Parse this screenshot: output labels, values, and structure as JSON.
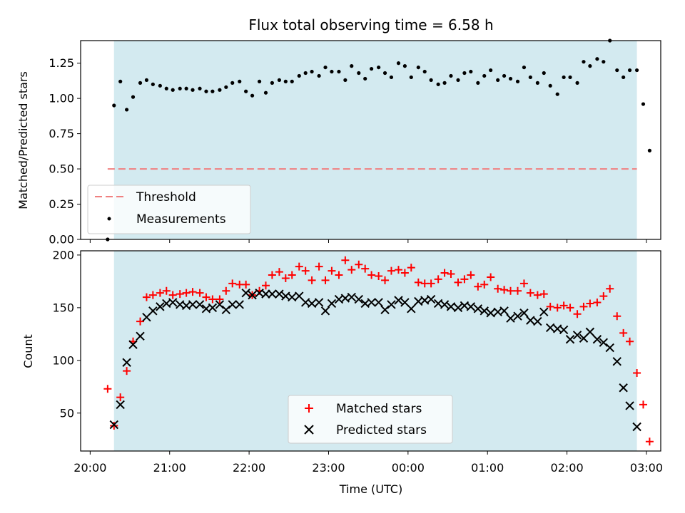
{
  "chart_data": [
    {
      "type": "scatter",
      "title": "Flux total observing time = 6.58 h",
      "xlabel": "",
      "ylabel": "Matched/Predicted stars",
      "x_unit": "hours since 20:00 UTC (axis shows times 20:00–03:00)",
      "xlim": [
        -0.12,
        7.18
      ],
      "ylim": [
        0,
        1.41
      ],
      "yticks": [
        0.0,
        0.25,
        0.5,
        0.75,
        1.0,
        1.25
      ],
      "ytick_labels": [
        "0.00",
        "0.25",
        "0.50",
        "0.75",
        "1.00",
        "1.25"
      ],
      "observing_window": [
        0.3,
        6.88
      ],
      "colors": {
        "window": "#d3eaf0",
        "threshold": "#f08080",
        "measurements": "#000000"
      },
      "legend": {
        "position": "lower-left",
        "entries": [
          "Threshold",
          "Measurements"
        ]
      },
      "threshold": {
        "name": "Threshold",
        "y": 0.5,
        "x": [
          0.22,
          6.88
        ]
      },
      "series": [
        {
          "name": "Measurements",
          "points": [
            [
              0.22,
              0.0
            ],
            [
              0.3,
              0.95
            ],
            [
              0.38,
              1.12
            ],
            [
              0.46,
              0.92
            ],
            [
              0.54,
              1.01
            ],
            [
              0.63,
              1.11
            ],
            [
              0.71,
              1.13
            ],
            [
              0.79,
              1.1
            ],
            [
              0.88,
              1.09
            ],
            [
              0.96,
              1.07
            ],
            [
              1.04,
              1.06
            ],
            [
              1.13,
              1.07
            ],
            [
              1.21,
              1.07
            ],
            [
              1.29,
              1.06
            ],
            [
              1.38,
              1.07
            ],
            [
              1.46,
              1.05
            ],
            [
              1.54,
              1.05
            ],
            [
              1.63,
              1.06
            ],
            [
              1.71,
              1.08
            ],
            [
              1.79,
              1.11
            ],
            [
              1.88,
              1.12
            ],
            [
              1.96,
              1.05
            ],
            [
              2.04,
              1.02
            ],
            [
              2.13,
              1.12
            ],
            [
              2.21,
              1.04
            ],
            [
              2.29,
              1.11
            ],
            [
              2.38,
              1.13
            ],
            [
              2.46,
              1.12
            ],
            [
              2.54,
              1.12
            ],
            [
              2.63,
              1.16
            ],
            [
              2.71,
              1.18
            ],
            [
              2.79,
              1.19
            ],
            [
              2.88,
              1.16
            ],
            [
              2.96,
              1.22
            ],
            [
              3.04,
              1.19
            ],
            [
              3.13,
              1.19
            ],
            [
              3.21,
              1.13
            ],
            [
              3.29,
              1.23
            ],
            [
              3.38,
              1.18
            ],
            [
              3.46,
              1.14
            ],
            [
              3.54,
              1.21
            ],
            [
              3.63,
              1.22
            ],
            [
              3.71,
              1.18
            ],
            [
              3.79,
              1.15
            ],
            [
              3.88,
              1.25
            ],
            [
              3.96,
              1.23
            ],
            [
              4.04,
              1.15
            ],
            [
              4.13,
              1.22
            ],
            [
              4.21,
              1.19
            ],
            [
              4.29,
              1.13
            ],
            [
              4.38,
              1.1
            ],
            [
              4.46,
              1.11
            ],
            [
              4.54,
              1.16
            ],
            [
              4.63,
              1.13
            ],
            [
              4.71,
              1.18
            ],
            [
              4.79,
              1.19
            ],
            [
              4.88,
              1.11
            ],
            [
              4.96,
              1.16
            ],
            [
              5.04,
              1.2
            ],
            [
              5.13,
              1.13
            ],
            [
              5.21,
              1.16
            ],
            [
              5.29,
              1.14
            ],
            [
              5.38,
              1.12
            ],
            [
              5.46,
              1.22
            ],
            [
              5.54,
              1.15
            ],
            [
              5.63,
              1.11
            ],
            [
              5.71,
              1.18
            ],
            [
              5.79,
              1.09
            ],
            [
              5.88,
              1.03
            ],
            [
              5.96,
              1.15
            ],
            [
              6.04,
              1.15
            ],
            [
              6.13,
              1.11
            ],
            [
              6.21,
              1.26
            ],
            [
              6.29,
              1.23
            ],
            [
              6.38,
              1.28
            ],
            [
              6.46,
              1.26
            ],
            [
              6.54,
              1.41
            ],
            [
              6.63,
              1.2
            ],
            [
              6.71,
              1.15
            ],
            [
              6.79,
              1.2
            ],
            [
              6.88,
              1.2
            ],
            [
              6.96,
              0.96
            ],
            [
              7.04,
              0.63
            ]
          ]
        }
      ]
    },
    {
      "type": "scatter",
      "title": "",
      "xlabel": "Time (UTC)",
      "ylabel": "Count",
      "x_unit": "hours since 20:00 UTC",
      "xlim": [
        -0.12,
        7.18
      ],
      "ylim": [
        14,
        204
      ],
      "xticks": [
        0,
        1,
        2,
        3,
        4,
        5,
        6,
        7
      ],
      "xtick_labels": [
        "20:00",
        "21:00",
        "22:00",
        "23:00",
        "00:00",
        "01:00",
        "02:00",
        "03:00"
      ],
      "yticks": [
        50,
        100,
        150,
        200
      ],
      "ytick_labels": [
        "50",
        "100",
        "150",
        "200"
      ],
      "observing_window": [
        0.3,
        6.88
      ],
      "colors": {
        "window": "#d3eaf0",
        "matched": "#ff0000",
        "predicted": "#000000"
      },
      "legend": {
        "position": "lower-center",
        "entries": [
          "Matched stars",
          "Predicted stars"
        ]
      },
      "series": [
        {
          "name": "Matched stars",
          "marker": "plus",
          "points": [
            [
              0.22,
              73
            ],
            [
              0.3,
              38
            ],
            [
              0.38,
              65
            ],
            [
              0.46,
              90
            ],
            [
              0.54,
              118
            ],
            [
              0.63,
              137
            ],
            [
              0.71,
              160
            ],
            [
              0.79,
              162
            ],
            [
              0.88,
              164
            ],
            [
              0.96,
              166
            ],
            [
              1.04,
              162
            ],
            [
              1.13,
              163
            ],
            [
              1.21,
              164
            ],
            [
              1.29,
              165
            ],
            [
              1.38,
              164
            ],
            [
              1.46,
              160
            ],
            [
              1.54,
              158
            ],
            [
              1.63,
              158
            ],
            [
              1.71,
              166
            ],
            [
              1.79,
              173
            ],
            [
              1.88,
              172
            ],
            [
              1.96,
              172
            ],
            [
              2.04,
              162
            ],
            [
              2.13,
              166
            ],
            [
              2.21,
              171
            ],
            [
              2.29,
              181
            ],
            [
              2.38,
              184
            ],
            [
              2.46,
              178
            ],
            [
              2.54,
              181
            ],
            [
              2.63,
              189
            ],
            [
              2.71,
              185
            ],
            [
              2.79,
              176
            ],
            [
              2.88,
              189
            ],
            [
              2.96,
              176
            ],
            [
              3.04,
              185
            ],
            [
              3.13,
              181
            ],
            [
              3.21,
              195
            ],
            [
              3.29,
              186
            ],
            [
              3.38,
              191
            ],
            [
              3.46,
              187
            ],
            [
              3.54,
              181
            ],
            [
              3.63,
              180
            ],
            [
              3.71,
              176
            ],
            [
              3.79,
              185
            ],
            [
              3.88,
              186
            ],
            [
              3.96,
              183
            ],
            [
              4.04,
              188
            ],
            [
              4.13,
              174
            ],
            [
              4.21,
              173
            ],
            [
              4.29,
              173
            ],
            [
              4.38,
              177
            ],
            [
              4.46,
              183
            ],
            [
              4.54,
              182
            ],
            [
              4.63,
              174
            ],
            [
              4.71,
              177
            ],
            [
              4.79,
              181
            ],
            [
              4.88,
              170
            ],
            [
              4.96,
              172
            ],
            [
              5.04,
              179
            ],
            [
              5.13,
              168
            ],
            [
              5.21,
              167
            ],
            [
              5.29,
              166
            ],
            [
              5.38,
              166
            ],
            [
              5.46,
              173
            ],
            [
              5.54,
              164
            ],
            [
              5.63,
              162
            ],
            [
              5.71,
              163
            ],
            [
              5.79,
              151
            ],
            [
              5.88,
              150
            ],
            [
              5.96,
              152
            ],
            [
              6.04,
              150
            ],
            [
              6.13,
              144
            ],
            [
              6.21,
              151
            ],
            [
              6.29,
              154
            ],
            [
              6.38,
              155
            ],
            [
              6.46,
              161
            ],
            [
              6.54,
              168
            ],
            [
              6.63,
              142
            ],
            [
              6.71,
              126
            ],
            [
              6.79,
              118
            ],
            [
              6.88,
              88
            ],
            [
              6.96,
              58
            ],
            [
              7.04,
              23
            ]
          ]
        },
        {
          "name": "Predicted stars",
          "marker": "x",
          "points": [
            [
              0.3,
              39
            ],
            [
              0.38,
              58
            ],
            [
              0.46,
              98
            ],
            [
              0.54,
              115
            ],
            [
              0.63,
              123
            ],
            [
              0.71,
              141
            ],
            [
              0.79,
              147
            ],
            [
              0.88,
              151
            ],
            [
              0.96,
              154
            ],
            [
              1.04,
              155
            ],
            [
              1.13,
              153
            ],
            [
              1.21,
              152
            ],
            [
              1.29,
              153
            ],
            [
              1.38,
              153
            ],
            [
              1.46,
              149
            ],
            [
              1.54,
              150
            ],
            [
              1.63,
              153
            ],
            [
              1.71,
              148
            ],
            [
              1.79,
              153
            ],
            [
              1.88,
              153
            ],
            [
              1.96,
              164
            ],
            [
              2.04,
              162
            ],
            [
              2.13,
              164
            ],
            [
              2.21,
              163
            ],
            [
              2.29,
              163
            ],
            [
              2.38,
              163
            ],
            [
              2.46,
              161
            ],
            [
              2.54,
              160
            ],
            [
              2.63,
              161
            ],
            [
              2.71,
              155
            ],
            [
              2.79,
              154
            ],
            [
              2.88,
              155
            ],
            [
              2.96,
              147
            ],
            [
              3.04,
              154
            ],
            [
              3.13,
              158
            ],
            [
              3.21,
              159
            ],
            [
              3.29,
              160
            ],
            [
              3.38,
              158
            ],
            [
              3.46,
              154
            ],
            [
              3.54,
              155
            ],
            [
              3.63,
              155
            ],
            [
              3.71,
              148
            ],
            [
              3.79,
              153
            ],
            [
              3.88,
              157
            ],
            [
              3.96,
              155
            ],
            [
              4.04,
              149
            ],
            [
              4.13,
              156
            ],
            [
              4.21,
              157
            ],
            [
              4.29,
              158
            ],
            [
              4.38,
              154
            ],
            [
              4.46,
              153
            ],
            [
              4.54,
              151
            ],
            [
              4.63,
              150
            ],
            [
              4.71,
              152
            ],
            [
              4.79,
              151
            ],
            [
              4.88,
              149
            ],
            [
              4.96,
              147
            ],
            [
              5.04,
              145
            ],
            [
              5.13,
              146
            ],
            [
              5.21,
              147
            ],
            [
              5.29,
              140
            ],
            [
              5.38,
              142
            ],
            [
              5.46,
              145
            ],
            [
              5.54,
              138
            ],
            [
              5.63,
              137
            ],
            [
              5.71,
              146
            ],
            [
              5.79,
              131
            ],
            [
              5.88,
              130
            ],
            [
              5.96,
              129
            ],
            [
              6.04,
              120
            ],
            [
              6.13,
              124
            ],
            [
              6.21,
              121
            ],
            [
              6.29,
              127
            ],
            [
              6.38,
              120
            ],
            [
              6.46,
              117
            ],
            [
              6.54,
              112
            ],
            [
              6.63,
              99
            ],
            [
              6.71,
              74
            ],
            [
              6.79,
              57
            ],
            [
              6.88,
              37
            ]
          ]
        }
      ]
    }
  ]
}
